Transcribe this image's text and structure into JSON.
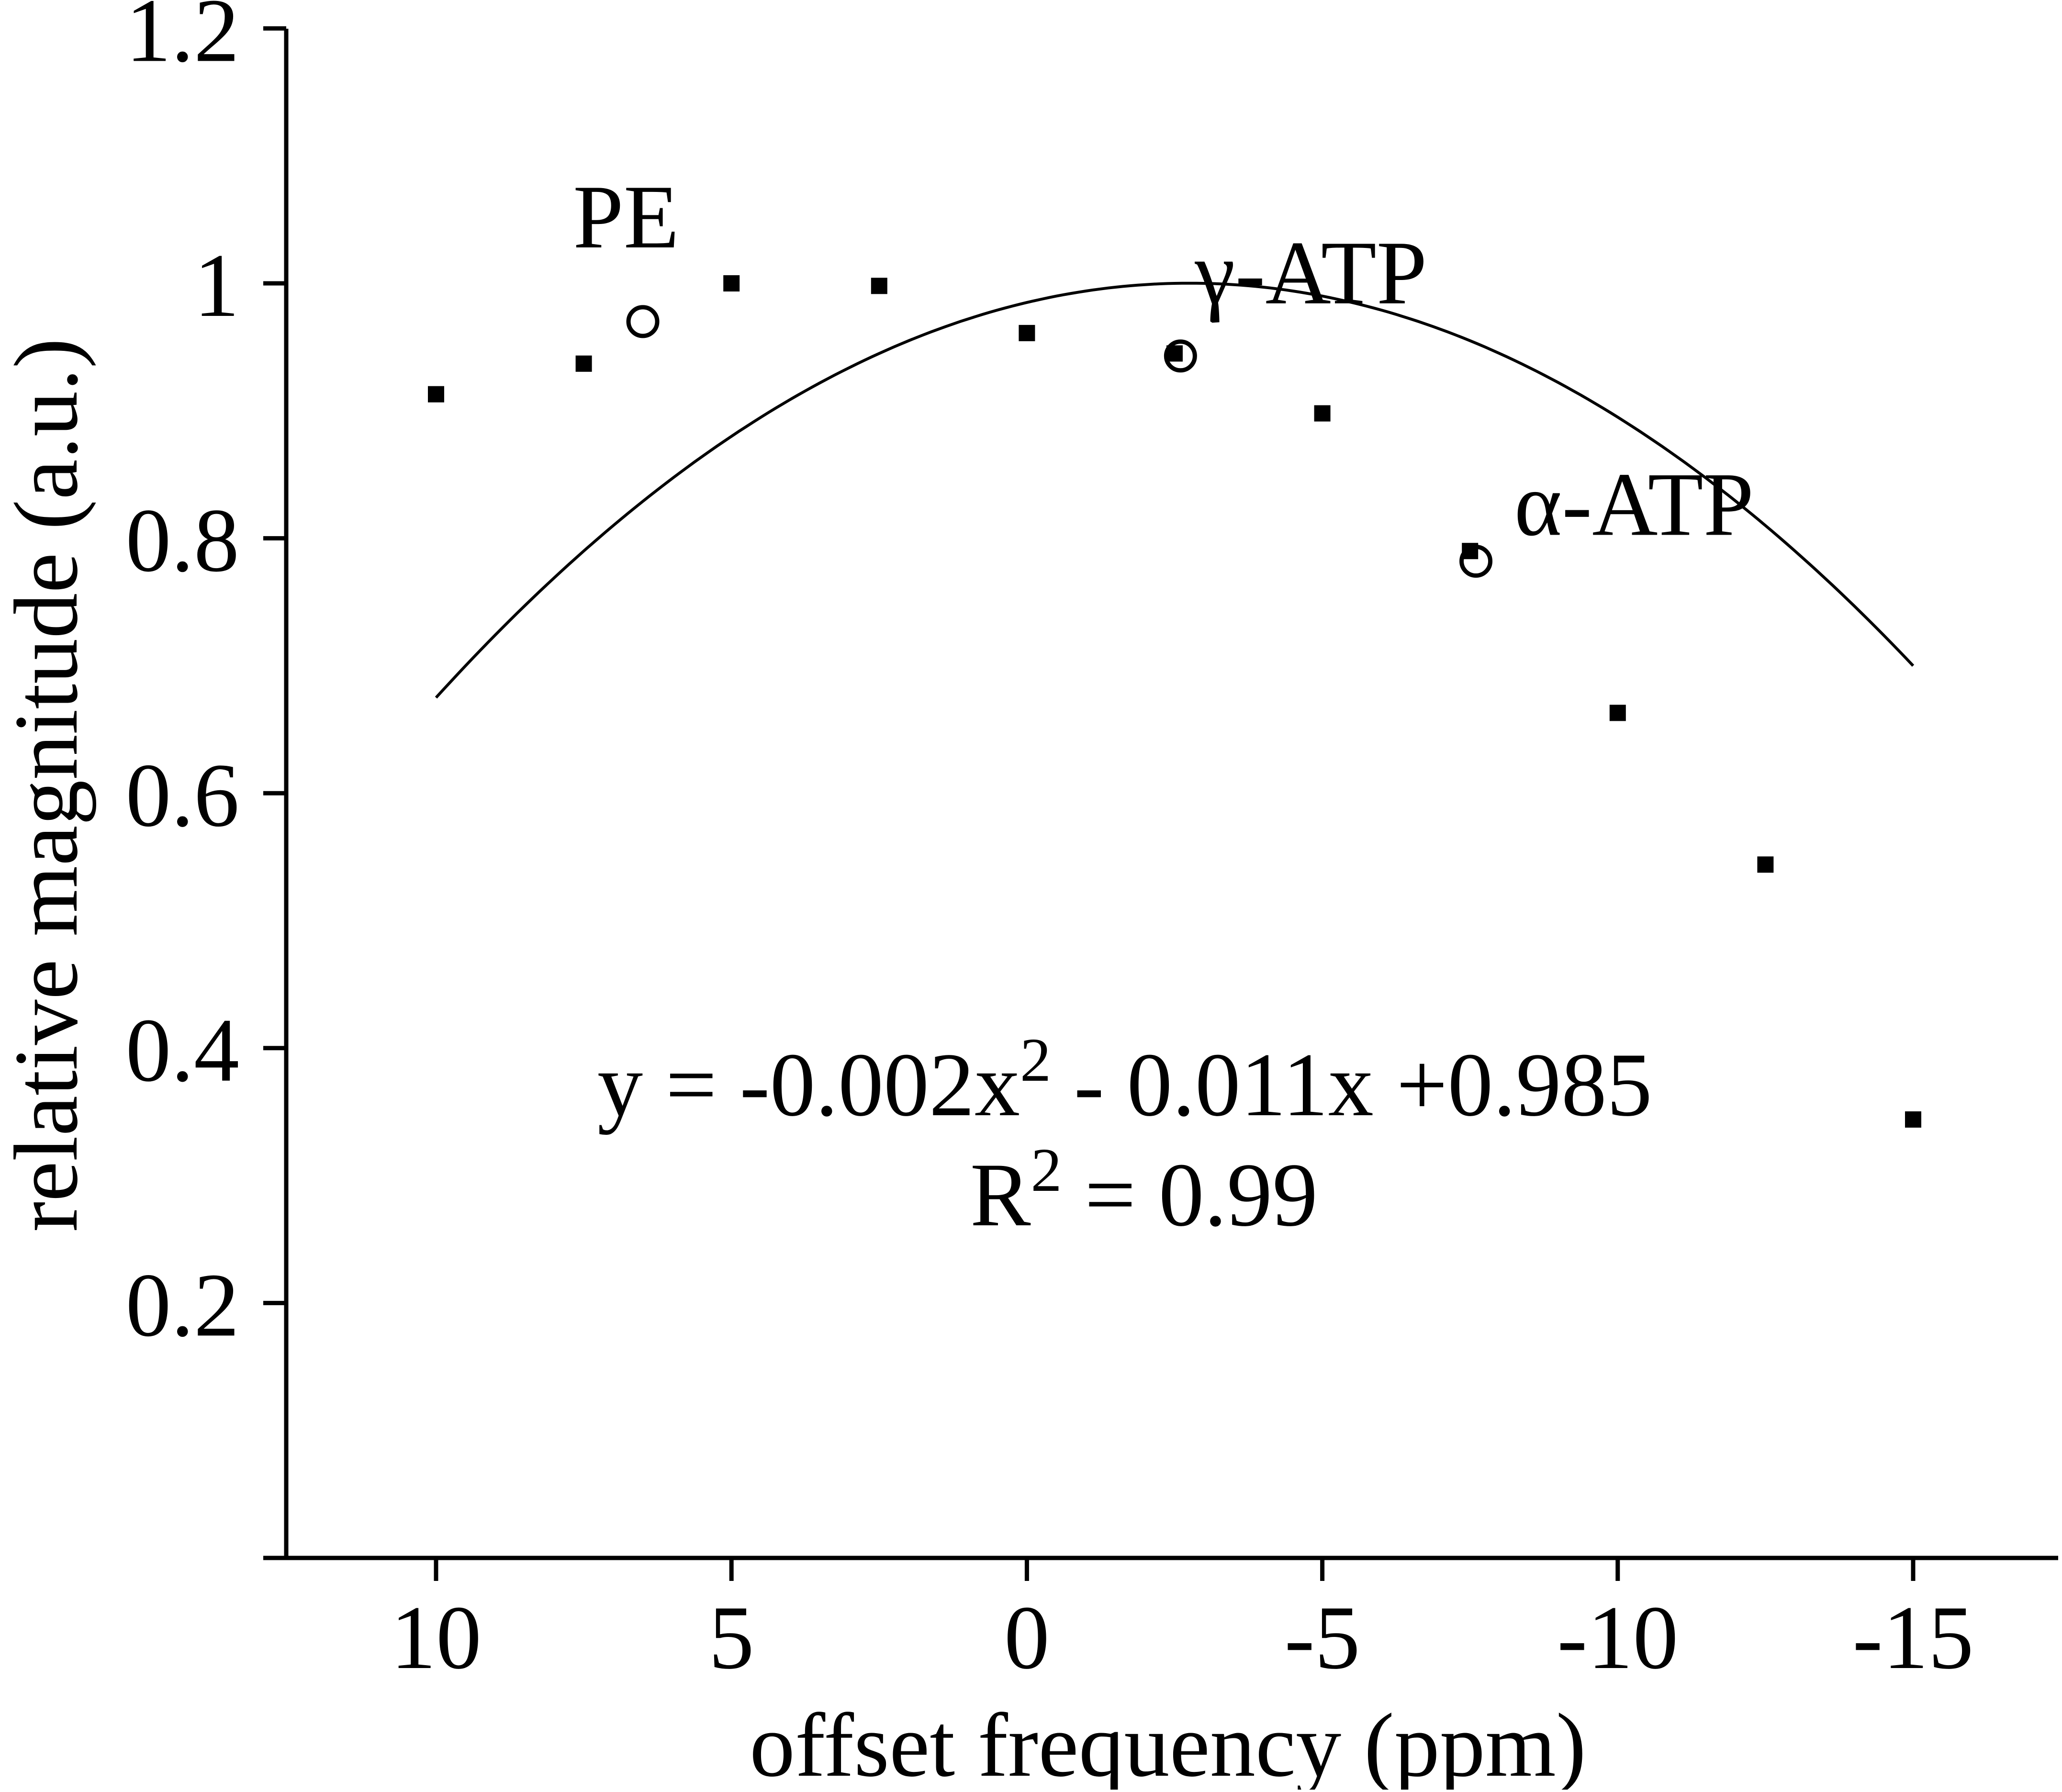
{
  "chart_data": {
    "type": "scatter",
    "title": "",
    "xlabel": "offset frequency (ppm)",
    "ylabel": "relative magnitude (a.u.)",
    "xlim": [
      12.5,
      -15
    ],
    "ylim": [
      0,
      1.2
    ],
    "x_reversed": true,
    "x_ticks": [
      10,
      5,
      0,
      -5,
      -10,
      -15
    ],
    "x_tick_labels": [
      "10",
      "5",
      "0",
      "-5",
      "-10",
      "-15"
    ],
    "y_ticks": [
      0.2,
      0.4,
      0.6,
      0.8,
      1,
      1.2
    ],
    "y_tick_labels": [
      "0.2",
      "0.4",
      "0.6",
      "0.8",
      "1",
      "1.2"
    ],
    "grid": false,
    "series": [
      {
        "marker": "square",
        "x": [
          10,
          7.5,
          5,
          2.5,
          0,
          -2.5,
          -5,
          -7.5,
          -10,
          -12.5,
          -15
        ],
        "y": [
          0.913,
          0.937,
          1.0,
          0.998,
          0.961,
          0.945,
          0.898,
          0.79,
          0.663,
          0.544,
          0.344
        ]
      },
      {
        "marker": "open-circle",
        "x": [
          6.5,
          -2.6,
          -7.6
        ],
        "y": [
          0.97,
          0.943,
          0.782
        ]
      }
    ],
    "fit": {
      "type": "polynomial",
      "coefficients": [
        -0.002,
        -0.011,
        0.985
      ],
      "x_range": [
        10,
        -15
      ]
    },
    "annotations": [
      {
        "text": "PE",
        "x": 6.5,
        "y": 0.97
      },
      {
        "text": "γ-ATP",
        "x": -2.6,
        "y": 0.943
      },
      {
        "text": "α-ATP",
        "x": -7.6,
        "y": 0.782
      }
    ],
    "equation": {
      "line1_main": "y = -0.002x",
      "line1_sup": "2",
      "line1_rest": " - 0.011x +0.985",
      "line2_main": "R",
      "line2_sup": "2",
      "line2_rest": " = 0.99"
    },
    "colors": {
      "ink": "#000000",
      "background": "#ffffff"
    }
  }
}
